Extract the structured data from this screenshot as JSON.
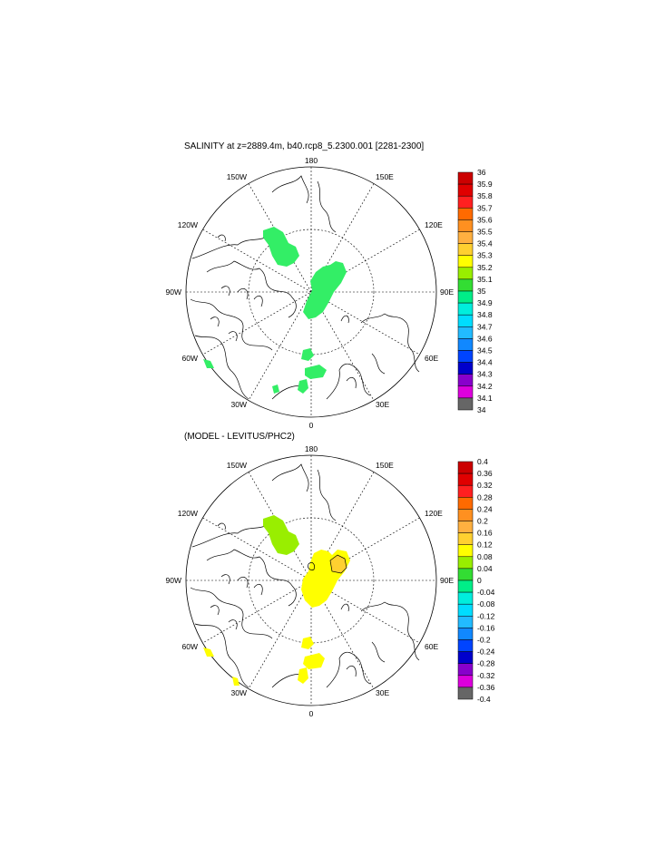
{
  "panels": [
    {
      "title": "SALINITY at z=2889.4m, b40.rcp8_5.2300.001 [2281-2300]",
      "lon_labels": [
        "180",
        "150E",
        "120E",
        "90E",
        "60E",
        "30E",
        "0",
        "30W",
        "60W",
        "90W",
        "120W",
        "150W"
      ],
      "colorbar": {
        "levels": [
          "36",
          "35.9",
          "35.8",
          "35.7",
          "35.6",
          "35.5",
          "35.4",
          "35.3",
          "35.2",
          "35.1",
          "35",
          "34.9",
          "34.8",
          "34.7",
          "34.6",
          "34.5",
          "34.4",
          "34.3",
          "34.2",
          "34.1",
          "34"
        ],
        "colors": [
          "#cc0000",
          "#e00000",
          "#ff2020",
          "#ff6a00",
          "#ff9020",
          "#ffb040",
          "#ffd030",
          "#ffff00",
          "#99ee00",
          "#33dd33",
          "#00ee88",
          "#00eedd",
          "#00ddff",
          "#22bbff",
          "#1188ff",
          "#0044ff",
          "#0000cc",
          "#8800cc",
          "#dd00dd",
          "#cccccc"
        ]
      },
      "fill_color": "#33ee66"
    },
    {
      "title": "(MODEL - LEVITUS/PHC2)",
      "lon_labels": [
        "180",
        "150E",
        "120E",
        "90E",
        "60E",
        "30E",
        "0",
        "30W",
        "60W",
        "90W",
        "120W",
        "150W"
      ],
      "colorbar": {
        "levels": [
          "0.4",
          "0.36",
          "0.32",
          "0.28",
          "0.24",
          "0.2",
          "0.16",
          "0.12",
          "0.08",
          "0.04",
          "0",
          "-0.04",
          "-0.08",
          "-0.12",
          "-0.16",
          "-0.2",
          "-0.24",
          "-0.28",
          "-0.32",
          "-0.36",
          "-0.4"
        ],
        "colors": [
          "#cc0000",
          "#e00000",
          "#ff2020",
          "#ff6a00",
          "#ff9020",
          "#ffb040",
          "#ffd030",
          "#ffff00",
          "#99ee00",
          "#33dd33",
          "#00ee88",
          "#00eedd",
          "#00ddff",
          "#22bbff",
          "#1188ff",
          "#0044ff",
          "#0000cc",
          "#8800cc",
          "#dd00dd",
          "#cccccc"
        ]
      },
      "fill_color": "#ffff00",
      "fill_color_2": "#99ee00",
      "fill_color_3": "#ffd030"
    }
  ],
  "colors": {
    "frame": "#000000",
    "last_bin": "#666666"
  }
}
